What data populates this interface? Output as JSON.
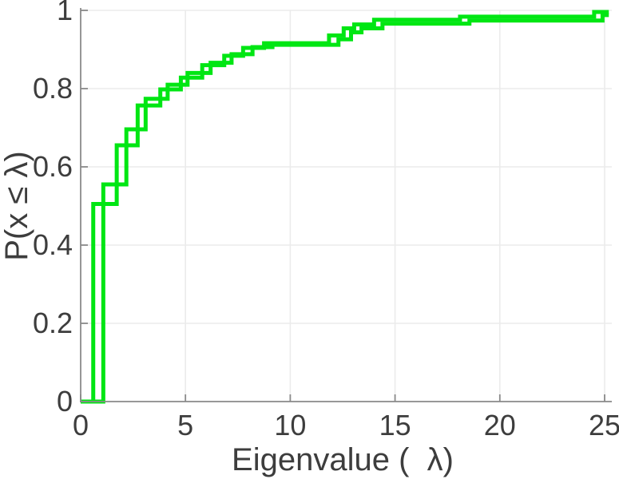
{
  "figure": {
    "background_color": "#ffffff",
    "axis_color": "#8a8a8a",
    "grid_color": "#ebebeb",
    "text_color": "#3d3d3d"
  },
  "chart_data": {
    "type": "line",
    "subtype": "ecdf-stairs",
    "title": "",
    "xlabel": "Eigenvalue (  λ)",
    "ylabel": "P(x ≤ λ)",
    "xlim": [
      0,
      25.3
    ],
    "ylim": [
      0,
      1
    ],
    "x_tick_values": [
      0,
      5,
      10,
      15,
      20,
      25
    ],
    "x_tick_labels": [
      "0",
      "5",
      "10",
      "15",
      "20",
      "25"
    ],
    "y_tick_values": [
      0,
      0.2,
      0.4,
      0.6,
      0.8,
      1
    ],
    "y_tick_labels": [
      "0",
      "0.2",
      "0.4",
      "0.6",
      "0.8",
      "1"
    ],
    "grid": true,
    "legend": "none",
    "line_color": "#00e613",
    "line_width": 5,
    "series": [
      {
        "name": "ecdf-curve-1",
        "start": [
          0,
          0
        ],
        "end_x": 25.2,
        "step_jumps": [
          [
            0.6,
            0.505
          ],
          [
            1.72,
            0.655
          ],
          [
            2.72,
            0.757
          ],
          [
            3.8,
            0.798
          ],
          [
            4.78,
            0.828
          ],
          [
            5.8,
            0.86
          ],
          [
            6.85,
            0.884
          ],
          [
            7.75,
            0.904
          ],
          [
            8.75,
            0.916
          ],
          [
            11.85,
            0.936
          ],
          [
            12.55,
            0.954
          ],
          [
            13.05,
            0.964
          ],
          [
            14.0,
            0.976
          ],
          [
            18.1,
            0.984
          ],
          [
            24.5,
            0.996
          ]
        ]
      },
      {
        "name": "ecdf-curve-2",
        "start": [
          0,
          0
        ],
        "end_x": 25.2,
        "step_jumps": [
          [
            1.08,
            0.555
          ],
          [
            2.18,
            0.696
          ],
          [
            3.1,
            0.774
          ],
          [
            4.15,
            0.81
          ],
          [
            5.1,
            0.84
          ],
          [
            6.2,
            0.866
          ],
          [
            7.2,
            0.888
          ],
          [
            8.2,
            0.906
          ],
          [
            9.15,
            0.912
          ],
          [
            12.3,
            0.926
          ],
          [
            12.9,
            0.944
          ],
          [
            13.4,
            0.954
          ],
          [
            14.4,
            0.966
          ],
          [
            18.55,
            0.974
          ],
          [
            24.9,
            0.988
          ]
        ]
      }
    ]
  }
}
